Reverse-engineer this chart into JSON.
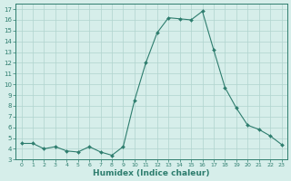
{
  "x": [
    0,
    1,
    2,
    3,
    4,
    5,
    6,
    7,
    8,
    9,
    10,
    11,
    12,
    13,
    14,
    15,
    16,
    17,
    18,
    19,
    20,
    21,
    22,
    23
  ],
  "y": [
    4.5,
    4.5,
    4.0,
    4.2,
    3.8,
    3.7,
    4.2,
    3.7,
    3.4,
    4.2,
    8.5,
    12.0,
    14.8,
    16.2,
    16.1,
    16.0,
    16.8,
    13.2,
    9.7,
    7.8,
    6.2,
    5.8,
    5.2,
    4.4
  ],
  "xlabel": "Humidex (Indice chaleur)",
  "ylabel": "",
  "xlim": [
    -0.5,
    23.5
  ],
  "ylim": [
    3,
    17.5
  ],
  "yticks": [
    3,
    4,
    5,
    6,
    7,
    8,
    9,
    10,
    11,
    12,
    13,
    14,
    15,
    16,
    17
  ],
  "xticks": [
    0,
    1,
    2,
    3,
    4,
    5,
    6,
    7,
    8,
    9,
    10,
    11,
    12,
    13,
    14,
    15,
    16,
    17,
    18,
    19,
    20,
    21,
    22,
    23
  ],
  "line_color": "#2e7d6e",
  "marker_color": "#2e7d6e",
  "bg_color": "#d6eeea",
  "grid_color": "#b0d4ce",
  "axis_label_color": "#2e7d6e"
}
